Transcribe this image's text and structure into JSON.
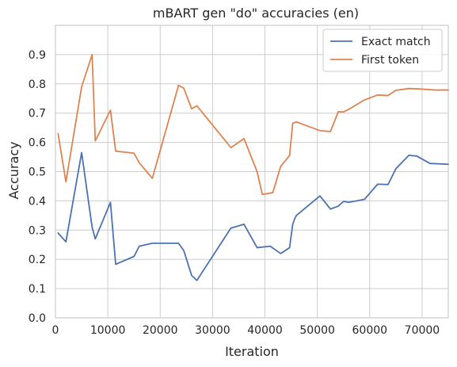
{
  "chart_data": {
    "type": "line",
    "title": "mBART gen \"do\" accuracies (en)",
    "xlabel": "Iteration",
    "ylabel": "Accuracy",
    "xlim": [
      0,
      75000
    ],
    "ylim": [
      0.0,
      1.0
    ],
    "xticks": [
      0,
      10000,
      20000,
      30000,
      40000,
      50000,
      60000,
      70000
    ],
    "yticks": [
      0.0,
      0.1,
      0.2,
      0.3,
      0.4,
      0.5,
      0.6,
      0.7,
      0.8,
      0.9
    ],
    "xtick_labels": [
      "0",
      "10000",
      "20000",
      "30000",
      "40000",
      "50000",
      "60000",
      "70000"
    ],
    "ytick_labels": [
      "0.0",
      "0.1",
      "0.2",
      "0.3",
      "0.4",
      "0.5",
      "0.6",
      "0.7",
      "0.8",
      "0.9"
    ],
    "grid": true,
    "legend_position": "top-right",
    "series": [
      {
        "name": "Exact match",
        "color": "#4c72b0",
        "x": [
          500,
          2000,
          5000,
          7000,
          7600,
          10500,
          11500,
          15000,
          16000,
          18500,
          20000,
          23500,
          24500,
          26000,
          27000,
          33500,
          36000,
          38500,
          41000,
          43000,
          44700,
          45300,
          45700,
          46000,
          50500,
          52500,
          54000,
          55000,
          56000,
          59000,
          61500,
          63500,
          65000,
          67500,
          69000,
          71500,
          75000
        ],
        "y": [
          0.29,
          0.26,
          0.565,
          0.31,
          0.27,
          0.395,
          0.183,
          0.21,
          0.245,
          0.255,
          0.255,
          0.255,
          0.23,
          0.145,
          0.128,
          0.307,
          0.32,
          0.24,
          0.245,
          0.22,
          0.24,
          0.32,
          0.34,
          0.35,
          0.417,
          0.372,
          0.382,
          0.398,
          0.395,
          0.405,
          0.457,
          0.456,
          0.51,
          0.556,
          0.553,
          0.528,
          0.525
        ]
      },
      {
        "name": "First token",
        "color": "#dd8452",
        "x": [
          500,
          2000,
          5000,
          7000,
          7600,
          10500,
          11500,
          15000,
          16000,
          18500,
          23500,
          24500,
          26000,
          27000,
          33500,
          36000,
          38500,
          39500,
          41500,
          43000,
          44700,
          45300,
          46000,
          50500,
          52500,
          54000,
          55000,
          56000,
          59000,
          61500,
          63500,
          65000,
          67500,
          69000,
          72500,
          75000
        ],
        "y": [
          0.63,
          0.465,
          0.79,
          0.9,
          0.605,
          0.71,
          0.57,
          0.563,
          0.53,
          0.477,
          0.795,
          0.785,
          0.715,
          0.725,
          0.582,
          0.613,
          0.5,
          0.422,
          0.428,
          0.518,
          0.555,
          0.665,
          0.67,
          0.64,
          0.637,
          0.705,
          0.704,
          0.713,
          0.745,
          0.762,
          0.76,
          0.778,
          0.784,
          0.783,
          0.779,
          0.779
        ]
      }
    ]
  }
}
